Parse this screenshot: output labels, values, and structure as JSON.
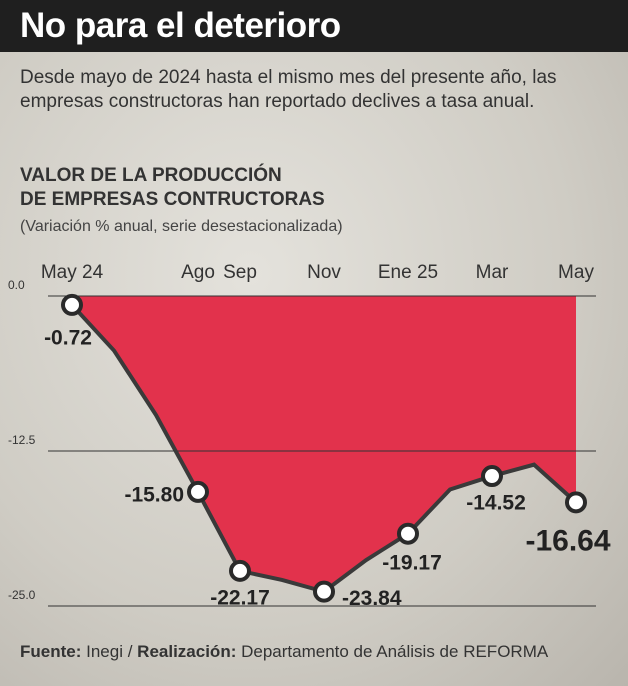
{
  "header": {
    "title": "No para el deterioro"
  },
  "intro": "Desde mayo de 2024 hasta el mismo mes del presente año, las empresas constructoras han reportado declives a tasa anual.",
  "chart_data": {
    "type": "area",
    "title": [
      "VALOR DE LA PRODUCCIÓN",
      "DE EMPRESAS CONTRUCTORAS"
    ],
    "subtitle": "(Variación % anual, serie desestacionalizada)",
    "categories": [
      "May 24",
      null,
      null,
      "Ago",
      "Sep",
      null,
      "Nov",
      null,
      "Ene 25",
      null,
      "Mar",
      null,
      "May"
    ],
    "values": [
      -0.72,
      -4.4,
      -9.6,
      -15.8,
      -22.17,
      -22.9,
      -23.84,
      -21.3,
      -19.17,
      -15.6,
      -14.52,
      -13.6,
      -16.64
    ],
    "value_labels": [
      "-0.72",
      null,
      null,
      "-15.80",
      "-22.17",
      null,
      "-23.84",
      null,
      "-19.17",
      null,
      "-14.52",
      null,
      "-16.64"
    ],
    "color": "#e2324c",
    "line_color": "#3a3a3a",
    "ylim": [
      -25,
      0
    ],
    "yticks": [
      {
        "value": -25,
        "label": "-25.0"
      },
      {
        "value": -12.5,
        "label": "-12.5"
      },
      {
        "value": 0,
        "label": "0.0"
      }
    ],
    "grid": true
  },
  "footer": {
    "source_label": "Fuente:",
    "source": "Inegi /",
    "credit_label": "Realización:",
    "credit": "Departamento de Análisis de REFORMA"
  }
}
